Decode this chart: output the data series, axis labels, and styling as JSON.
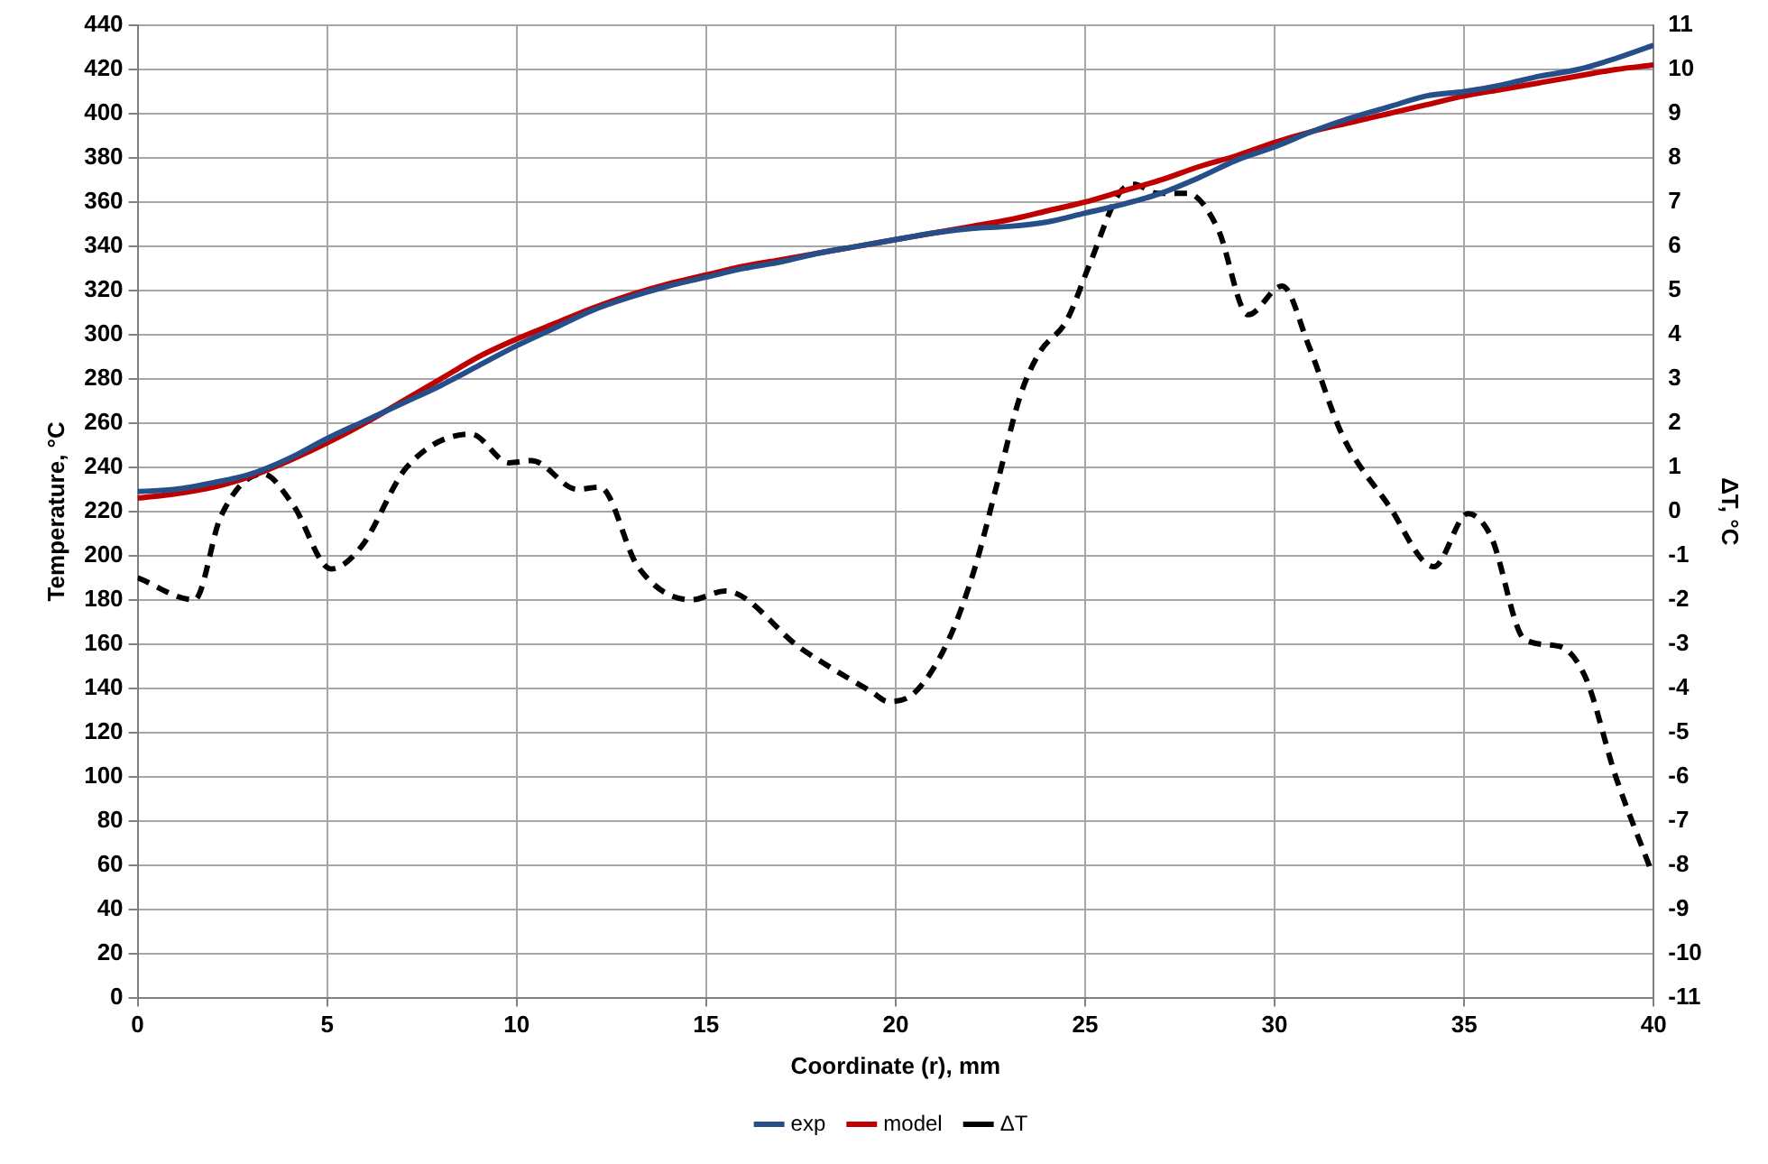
{
  "chart_data": {
    "type": "line",
    "xlabel": "Coordinate (r), mm",
    "ylabel": "Temperature, °C",
    "y2label": "ΔT, °C",
    "x": [
      0,
      1,
      2,
      3,
      4,
      5,
      6,
      7,
      8,
      9,
      10,
      11,
      12,
      13,
      14,
      15,
      16,
      17,
      18,
      19,
      20,
      21,
      22,
      23,
      24,
      25,
      26,
      27,
      28,
      29,
      30,
      31,
      32,
      33,
      34,
      35,
      36,
      37,
      38,
      39,
      40
    ],
    "series": [
      {
        "name": "exp",
        "color": "#264f8a",
        "line_style": "solid",
        "values": [
          229,
          230,
          233,
          237,
          244,
          253,
          261,
          269,
          277,
          286,
          295,
          303,
          311,
          317,
          322,
          326,
          330,
          333,
          337,
          340,
          343,
          346,
          348,
          349,
          351,
          355,
          359,
          364,
          371,
          379,
          385,
          392,
          398,
          403,
          408,
          410,
          413,
          417,
          420,
          425,
          431
        ]
      },
      {
        "name": "model",
        "color": "#c00000",
        "line_style": "solid",
        "values": [
          226,
          228,
          231,
          236,
          243,
          251,
          260,
          270,
          280,
          290,
          298,
          305,
          312,
          318,
          323,
          327,
          331,
          334,
          337,
          340,
          343,
          346,
          349,
          352,
          356,
          360,
          365,
          370,
          376,
          381,
          387,
          392,
          396,
          400,
          404,
          408,
          411,
          414,
          417,
          420,
          422
        ]
      },
      {
        "name": "ΔT",
        "color": "#000000",
        "line_style": "dashed",
        "axis": "y2",
        "x": [
          0,
          1.5,
          2.2,
          3.3,
          4.1,
          5.1,
          5.9,
          7.1,
          8.8,
          9.8,
          10.4,
          11.6,
          12.2,
          13.2,
          14.6,
          15.5,
          17.5,
          19.4,
          19.8,
          20.5,
          21.4,
          22.1,
          22.7,
          23.3,
          23.8,
          24.5,
          25.1,
          25.9,
          26.3,
          26.9,
          27.7,
          28.5,
          29.3,
          30.2,
          30.9,
          31.8,
          33,
          34.2,
          35.1,
          35.7,
          36.6,
          37.5,
          38.2,
          39,
          39.9
        ],
        "values": [
          -1.5,
          -2,
          -0.1,
          0.85,
          0.15,
          -1.3,
          -0.8,
          1,
          1.75,
          1.1,
          1.15,
          0.5,
          0.55,
          -1.25,
          -2,
          -1.8,
          -3.1,
          -4.1,
          -4.3,
          -4.1,
          -2.9,
          -1.25,
          0.7,
          2.65,
          3.6,
          4.3,
          5.55,
          7.2,
          7.4,
          7.2,
          7.2,
          6.4,
          4.45,
          5.1,
          3.75,
          1.7,
          0.15,
          -1.25,
          -0.05,
          -0.55,
          -2.9,
          -3.05,
          -3.75,
          -6,
          -8.05
        ]
      }
    ],
    "xlim": [
      0,
      40
    ],
    "xticks": [
      0,
      5,
      10,
      15,
      20,
      25,
      30,
      35,
      40
    ],
    "ylim": [
      0,
      440
    ],
    "yticks": [
      0,
      20,
      40,
      60,
      80,
      100,
      120,
      140,
      160,
      180,
      200,
      220,
      240,
      260,
      280,
      300,
      320,
      340,
      360,
      380,
      400,
      420,
      440
    ],
    "y2lim": [
      -11,
      11
    ],
    "y2ticks": [
      -11,
      -10,
      -9,
      -8,
      -7,
      -6,
      -5,
      -4,
      -3,
      -2,
      -1,
      0,
      1,
      2,
      3,
      4,
      5,
      6,
      7,
      8,
      9,
      10,
      11
    ],
    "grid": true,
    "legend": "bottom",
    "marker": "none"
  }
}
